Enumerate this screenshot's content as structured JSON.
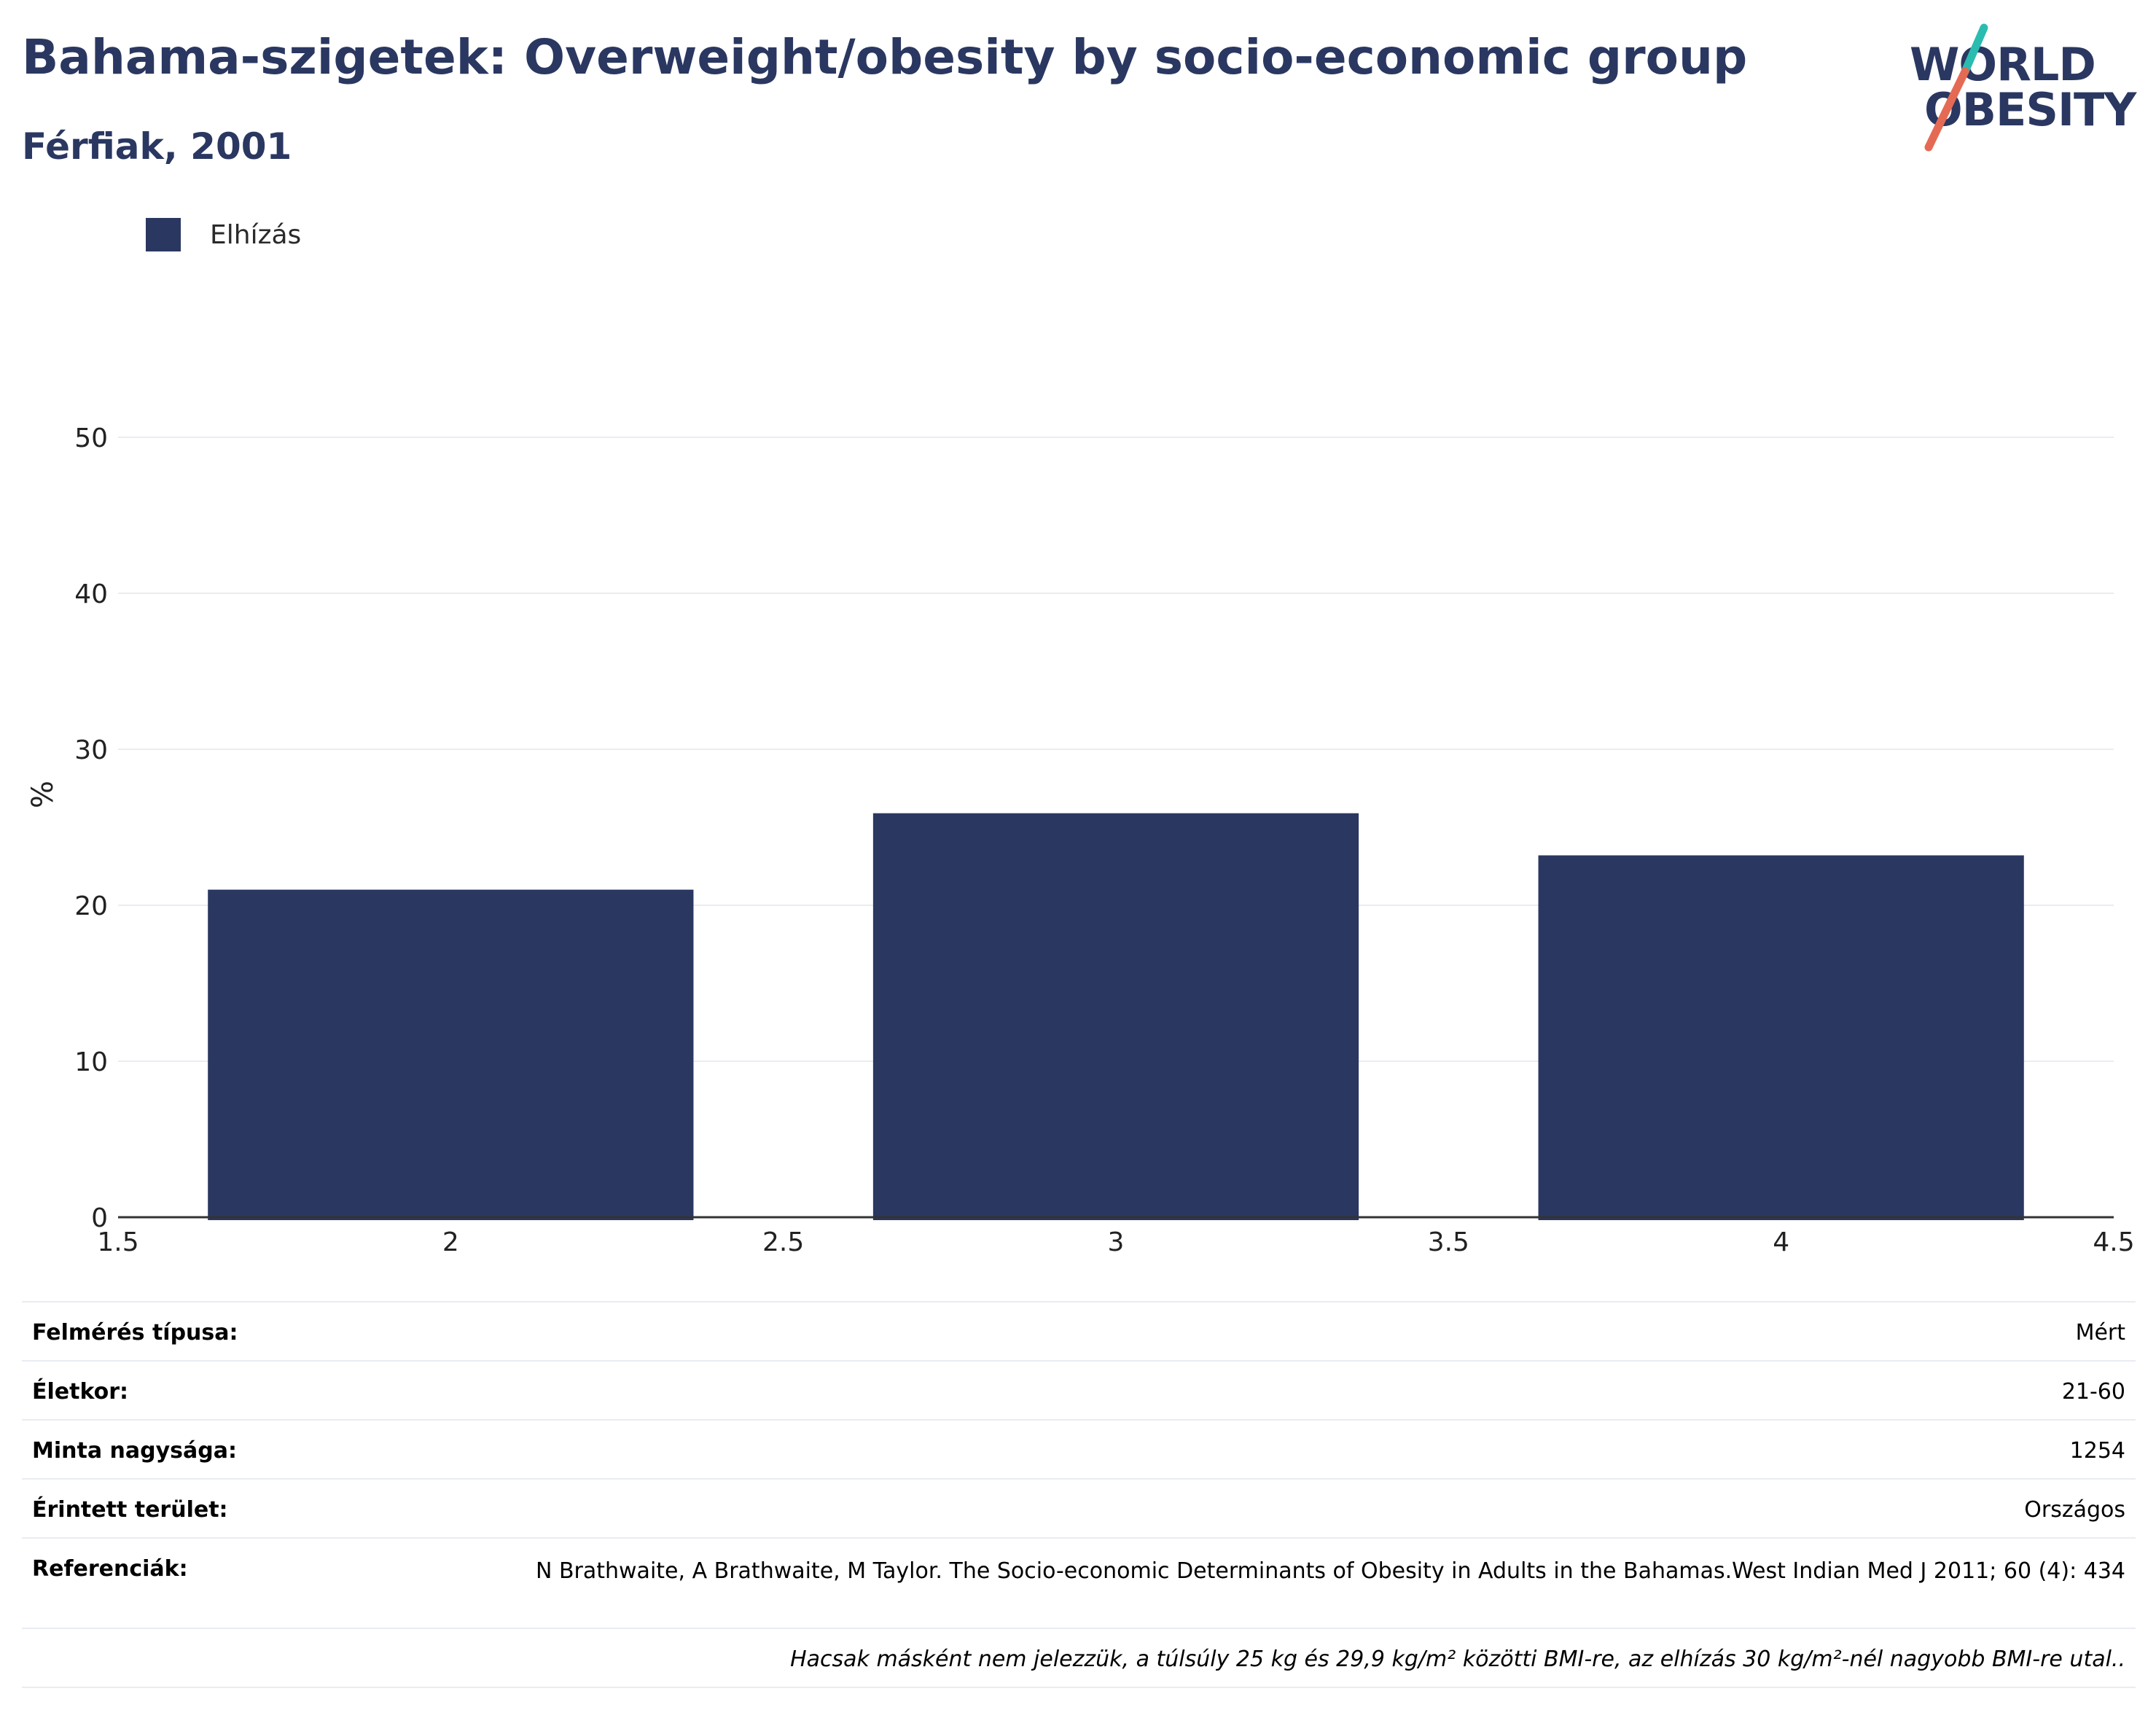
{
  "title": "Bahama-szigetek: Overweight/obesity by socio-economic group",
  "subtitle": "Férfiak, 2001",
  "logo": {
    "line1": "WORLD",
    "line2": "OBESITY",
    "accent_teal": "#2bbcb0",
    "accent_coral": "#e56a54"
  },
  "colors": {
    "bar": "#2a3761",
    "title": "#2a3761",
    "grid": "#e9ecf2",
    "axis": "#333333"
  },
  "chart_data": {
    "type": "bar",
    "title": "Bahama-szigetek: Overweight/obesity by socio-economic group",
    "subtitle": "Férfiak, 2001",
    "xlabel": "",
    "ylabel": "%",
    "x": [
      2,
      3,
      4
    ],
    "bar_width": 0.73,
    "series": [
      {
        "name": "Elhízás",
        "values": [
          21.0,
          25.9,
          23.2
        ],
        "color": "#2a3761"
      }
    ],
    "xlim": [
      1.5,
      4.5
    ],
    "ylim": [
      0,
      50
    ],
    "x_ticks": [
      "1.5",
      "2",
      "2.5",
      "3",
      "3.5",
      "4",
      "4.5"
    ],
    "y_ticks": [
      "0",
      "10",
      "20",
      "30",
      "40",
      "50"
    ],
    "grid": "horizontal",
    "legend_position": "top-left"
  },
  "meta": {
    "survey_type_label": "Felmérés típusa:",
    "survey_type_value": "Mért",
    "age_label": "Életkor:",
    "age_value": "21-60",
    "sample_label": "Minta nagysága:",
    "sample_value": "1254",
    "area_label": "Érintett terület:",
    "area_value": "Országos",
    "ref_label": "Referenciák:",
    "ref_value": "N Brathwaite, A Brathwaite, M Taylor. The Socio-economic Determinants of Obesity in Adults in the Bahamas.West Indian Med J 2011; 60 (4): 434",
    "note": "Hacsak másként nem jelezzük, a túlsúly 25 kg és 29,9 kg/m² közötti BMI-re, az elhízás 30 kg/m²-nél nagyobb BMI-re utal.."
  }
}
